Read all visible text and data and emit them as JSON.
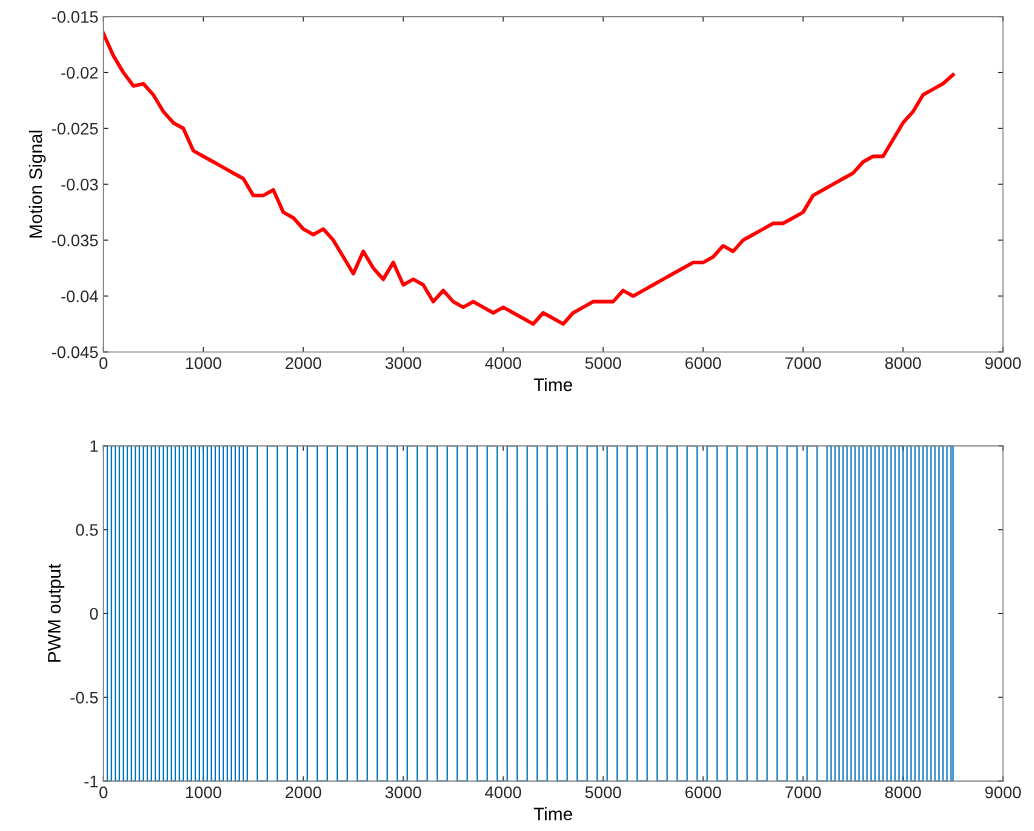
{
  "chart_data": [
    {
      "type": "line",
      "xlabel": "Time",
      "ylabel": "Motion Signal",
      "xlim": [
        0,
        9000
      ],
      "xticks": [
        0,
        1000,
        2000,
        3000,
        4000,
        5000,
        6000,
        7000,
        8000,
        9000
      ],
      "ylim": [
        -0.045,
        -0.015
      ],
      "yticks": [
        -0.045,
        -0.04,
        -0.035,
        -0.03,
        -0.025,
        -0.02,
        -0.015
      ],
      "grid": false,
      "legend": false,
      "x": [
        0,
        100,
        200,
        300,
        400,
        500,
        600,
        700,
        800,
        900,
        1000,
        1100,
        1200,
        1300,
        1400,
        1500,
        1600,
        1700,
        1800,
        1900,
        2000,
        2100,
        2200,
        2300,
        2400,
        2500,
        2600,
        2700,
        2800,
        2900,
        3000,
        3100,
        3200,
        3300,
        3400,
        3500,
        3600,
        3700,
        3800,
        3900,
        4000,
        4100,
        4200,
        4300,
        4400,
        4500,
        4600,
        4700,
        4800,
        4900,
        5000,
        5100,
        5200,
        5300,
        5400,
        5500,
        5600,
        5700,
        5800,
        5900,
        6000,
        6100,
        6200,
        6300,
        6400,
        6500,
        6600,
        6700,
        6800,
        6900,
        7000,
        7100,
        7200,
        7300,
        7400,
        7500,
        7600,
        7700,
        7800,
        7900,
        8000,
        8100,
        8200,
        8300,
        8400,
        8500
      ],
      "series": [
        {
          "color": "#ff0000",
          "values": [
            -0.0165,
            -0.0185,
            -0.02,
            -0.0212,
            -0.021,
            -0.022,
            -0.0235,
            -0.0245,
            -0.025,
            -0.027,
            -0.0275,
            -0.028,
            -0.0285,
            -0.029,
            -0.0295,
            -0.031,
            -0.031,
            -0.0305,
            -0.0325,
            -0.033,
            -0.034,
            -0.0345,
            -0.034,
            -0.035,
            -0.0365,
            -0.038,
            -0.036,
            -0.0375,
            -0.0385,
            -0.037,
            -0.039,
            -0.0385,
            -0.039,
            -0.0405,
            -0.0395,
            -0.0405,
            -0.041,
            -0.0405,
            -0.041,
            -0.0415,
            -0.041,
            -0.0415,
            -0.042,
            -0.0425,
            -0.0415,
            -0.042,
            -0.0425,
            -0.0415,
            -0.041,
            -0.0405,
            -0.0405,
            -0.0405,
            -0.0395,
            -0.04,
            -0.0395,
            -0.039,
            -0.0385,
            -0.038,
            -0.0375,
            -0.037,
            -0.037,
            -0.0365,
            -0.0355,
            -0.036,
            -0.035,
            -0.0345,
            -0.034,
            -0.0335,
            -0.0335,
            -0.033,
            -0.0325,
            -0.031,
            -0.0305,
            -0.03,
            -0.0295,
            -0.029,
            -0.028,
            -0.0275,
            -0.0275,
            -0.026,
            -0.0245,
            -0.0235,
            -0.022,
            -0.0215,
            -0.021,
            -0.0202
          ]
        }
      ]
    },
    {
      "type": "step",
      "xlabel": "Time",
      "ylabel": "PWM output",
      "xlim": [
        0,
        9000
      ],
      "xticks": [
        0,
        1000,
        2000,
        3000,
        4000,
        5000,
        6000,
        7000,
        8000,
        9000
      ],
      "ylim": [
        -1,
        1
      ],
      "yticks": [
        -1,
        -0.5,
        0,
        0.5,
        1
      ],
      "grid": false,
      "legend": false,
      "x": [
        0,
        40,
        80,
        120,
        160,
        200,
        240,
        280,
        320,
        360,
        400,
        440,
        480,
        520,
        560,
        600,
        640,
        680,
        720,
        760,
        800,
        840,
        880,
        920,
        960,
        1000,
        1040,
        1080,
        1120,
        1160,
        1200,
        1240,
        1280,
        1320,
        1360,
        1400,
        1440,
        1540,
        1640,
        1740,
        1840,
        1940,
        2040,
        2140,
        2240,
        2340,
        2440,
        2540,
        2640,
        2740,
        2840,
        2940,
        3040,
        3140,
        3240,
        3340,
        3440,
        3540,
        3640,
        3740,
        3840,
        3940,
        4040,
        4140,
        4240,
        4340,
        4440,
        4540,
        4640,
        4740,
        4840,
        4940,
        5040,
        5140,
        5240,
        5340,
        5440,
        5540,
        5640,
        5740,
        5840,
        5940,
        6040,
        6140,
        6240,
        6340,
        6440,
        6540,
        6640,
        6740,
        6840,
        6940,
        7040,
        7140,
        7240,
        7280,
        7320,
        7360,
        7400,
        7440,
        7480,
        7520,
        7560,
        7600,
        7640,
        7680,
        7720,
        7760,
        7800,
        7840,
        7880,
        7920,
        7960,
        8000,
        8040,
        8080,
        8120,
        8160,
        8200,
        8240,
        8280,
        8320,
        8360,
        8400,
        8440,
        8480,
        8500
      ],
      "series": [
        {
          "color": "#0072bd",
          "values": [
            1,
            -1,
            1,
            -1,
            1,
            -1,
            1,
            -1,
            1,
            -1,
            1,
            -1,
            1,
            -1,
            1,
            -1,
            1,
            -1,
            1,
            -1,
            1,
            -1,
            1,
            -1,
            1,
            -1,
            1,
            -1,
            1,
            -1,
            1,
            -1,
            1,
            -1,
            1,
            -1,
            1,
            -1,
            1,
            -1,
            1,
            -1,
            1,
            -1,
            1,
            -1,
            1,
            -1,
            1,
            -1,
            1,
            -1,
            1,
            -1,
            1,
            -1,
            1,
            -1,
            1,
            -1,
            1,
            -1,
            1,
            -1,
            1,
            -1,
            1,
            -1,
            1,
            -1,
            1,
            -1,
            1,
            -1,
            1,
            -1,
            1,
            -1,
            1,
            -1,
            1,
            -1,
            1,
            -1,
            1,
            -1,
            1,
            -1,
            1,
            -1,
            1,
            -1,
            1,
            -1,
            1,
            -1,
            1,
            -1,
            1,
            -1,
            1,
            -1,
            1,
            -1,
            1,
            -1,
            1,
            -1,
            1,
            -1,
            1,
            -1,
            1,
            -1,
            1,
            -1,
            1,
            -1,
            1,
            -1,
            1,
            -1,
            1,
            -1,
            1,
            -1,
            1
          ]
        }
      ]
    }
  ]
}
